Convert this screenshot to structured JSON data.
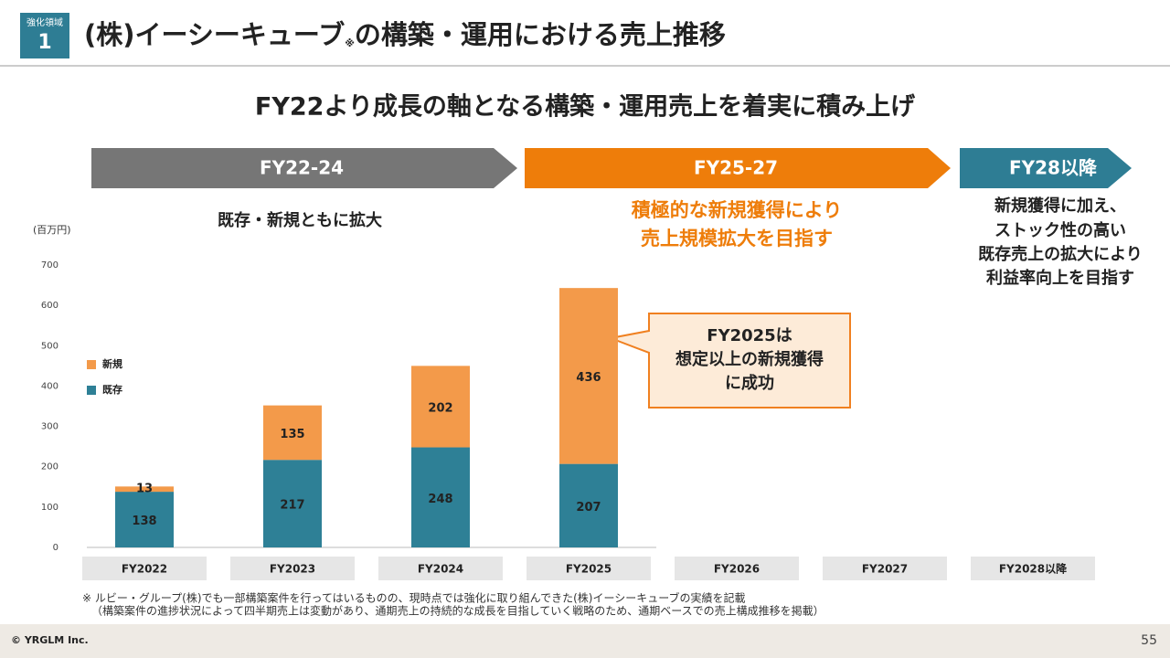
{
  "header": {
    "badge_label": "強化領域",
    "badge_number": "1",
    "title_parts": [
      "(株)イーシーキューブ",
      "※",
      "の構築・運用における売上推移"
    ]
  },
  "subtitle": "FY22より成長の軸となる構築・運用売上を着実に積み上げ",
  "phases": [
    {
      "label": "FY22-24",
      "description": [
        "既存・新規ともに拡大"
      ]
    },
    {
      "label": "FY25-27",
      "description": [
        "積極的な新規獲得により",
        "売上規模拡大を目指す"
      ]
    },
    {
      "label": "FY28以降",
      "description": [
        "新規獲得に加え、",
        "ストック性の高い",
        "既存売上の拡大により",
        "利益率向上を目指す"
      ]
    }
  ],
  "callout": [
    "FY2025は",
    "想定以上の新規獲得",
    "に成功"
  ],
  "chart_data": {
    "type": "stacked-bar",
    "y_label": "(百万円)",
    "categories": [
      "FY2022",
      "FY2023",
      "FY2024",
      "FY2025",
      "FY2026",
      "FY2027",
      "FY2028以降"
    ],
    "series": [
      {
        "name": "既存",
        "color": "#2e8096",
        "values": [
          138,
          217,
          248,
          207,
          null,
          null,
          null
        ]
      },
      {
        "name": "新規",
        "color": "#f39a4a",
        "values": [
          13,
          135,
          202,
          436,
          null,
          null,
          null
        ]
      }
    ],
    "ylim": [
      0,
      700
    ],
    "yticks": [
      0,
      100,
      200,
      300,
      400,
      500,
      600,
      700
    ]
  },
  "footnotes": [
    "※ ルビー・グループ(株)でも一部構築案件を行ってはいるものの、現時点では強化に取り組んできた(株)イーシーキューブの実績を記載",
    "（構築案件の進捗状況によって四半期売上は変動があり、通期売上の持続的な成長を目指していく戦略のため、通期ベースでの売上構成推移を掲載）"
  ],
  "footer": {
    "copyright": "© YRGLM Inc.",
    "page": "55"
  }
}
